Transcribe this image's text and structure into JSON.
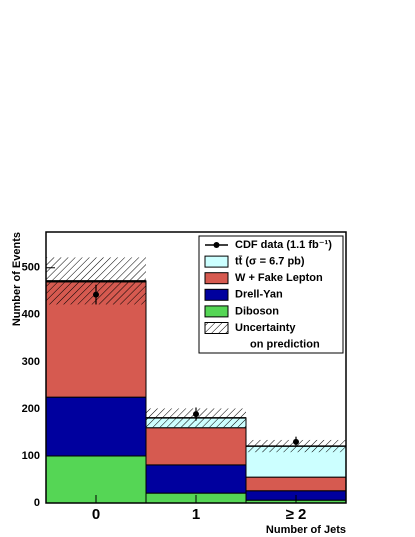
{
  "chart_data": {
    "type": "stacked-histogram",
    "categories": [
      "0",
      "1",
      "≥ 2"
    ],
    "x_label": "Number of Jets",
    "y_label": "Number of Events",
    "ylim": [
      0,
      576
    ],
    "yticks": [
      0,
      100,
      200,
      300,
      400,
      500
    ],
    "series": [
      {
        "name": "Diboson",
        "color": "#55d655",
        "values": [
          100,
          21,
          6
        ]
      },
      {
        "name": "Drell-Yan",
        "color": "#00009e",
        "values": [
          125,
          60,
          20
        ]
      },
      {
        "name": "W + Fake Lepton",
        "color": "#d65a50",
        "values": [
          245,
          79,
          29
        ]
      },
      {
        "name": "tt̄ (σ = 6.7 pb)",
        "color": "#ccffff",
        "values": [
          2,
          21,
          66
        ]
      }
    ],
    "uncertainty": {
      "name": [
        "Uncertainty",
        "on prediction"
      ],
      "values": [
        50,
        20,
        13
      ]
    },
    "data": {
      "name": "CDF data (1.1 fb⁻¹)",
      "values": [
        443,
        189,
        130
      ],
      "errors": [
        21,
        14,
        11
      ]
    }
  }
}
